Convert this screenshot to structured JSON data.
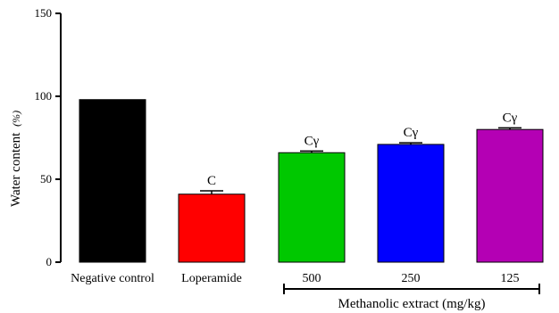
{
  "chart_data": {
    "type": "bar",
    "categories": [
      "Negative control",
      "Loperamide",
      "500",
      "250",
      "125"
    ],
    "values": [
      98,
      41,
      66,
      71,
      80
    ],
    "errors": [
      0,
      2,
      1,
      1,
      1
    ],
    "colors": [
      "#000000",
      "#ff0000",
      "#00c800",
      "#0000ff",
      "#b400b4"
    ],
    "annotations": [
      "",
      "C",
      "Cγ",
      "Cγ",
      "Cγ"
    ],
    "ylabel_main": "Water content",
    "ylabel_unit": "(%)",
    "xlabel": "",
    "ylim": [
      0,
      150
    ],
    "yticks": [
      0,
      50,
      100,
      150
    ],
    "group_label": "Methanolic extract (mg/kg)",
    "group_categories": [
      "500",
      "250",
      "125"
    ]
  }
}
